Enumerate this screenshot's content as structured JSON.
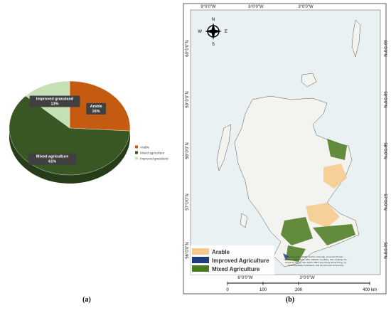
{
  "chart_data": {
    "type": "pie",
    "categories": [
      "Arable",
      "Mixed agriculture",
      "Improved grassland"
    ],
    "values": [
      26,
      61,
      13
    ],
    "value_labels": [
      "26%",
      "61%",
      "13%"
    ],
    "colors": [
      "#c55a11",
      "#385723",
      "#c5e0b4"
    ],
    "legend": "right",
    "panel_label": "(a)"
  },
  "map": {
    "panel_label": "(b)",
    "top_labels": [
      "9°0'0\"W",
      "6°0'0\"W",
      "3°0'0\"W"
    ],
    "bottom_labels": [
      "6°0'0\"W",
      "3°0'0\"W"
    ],
    "left_labels": [
      "60°0'0\"N",
      "59°0'0\"N",
      "58°0'0\"N",
      "57°0'0\"N",
      "56°0'0\"N"
    ],
    "right_labels": [
      "60°0'0\"N",
      "59°0'0\"N",
      "58°0'0\"N",
      "57°0'0\"N",
      "56°0'0\"N"
    ],
    "compass": [
      "N",
      "E",
      "S",
      "W"
    ],
    "legend": [
      "Arable",
      "Improved Agriculture",
      "Mixed Agriculture"
    ],
    "legend_colors": [
      "#f8c98a",
      "#1f3a7a",
      "#4a7a1e"
    ],
    "scale_ticks": [
      "0",
      "100",
      "200",
      "400 km"
    ],
    "attribution": "Sources: Esri, HERE, Garmin, Intermap, increment P Corp., GEBCO, USGS, FAO, NPS, NRCAN, GeoBase, IGN, Kadaster NL, Ordnance Survey, Esri Japan, METI, Esri China (Hong Kong), (c) OpenStreetMap contributors, and the GIS User Community"
  }
}
